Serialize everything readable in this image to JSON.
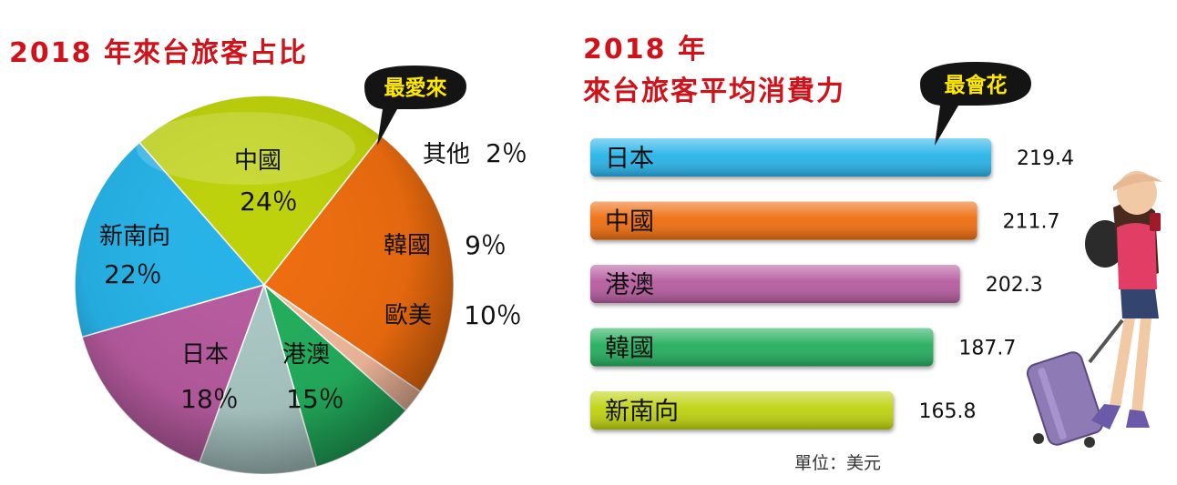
{
  "pie": {
    "title": "2018 年來台旅客占比",
    "callout": "最愛來",
    "colors": {
      "中國": "#ee6c0e",
      "其他": "#f2b99c",
      "韓國": "#22ad5c",
      "歐美": "#a9c7c4",
      "港澳": "#b65a9e",
      "日本": "#26b3e8",
      "新南向": "#bed20a"
    }
  },
  "bars": {
    "title_line1": "2018 年",
    "title_line2": "來台旅客平均消費力",
    "callout": "最會花",
    "unit_note": "單位：美元",
    "colors": {
      "日本": "#26b3e8",
      "中國": "#ee6c0e",
      "港澳": "#b65a9e",
      "韓國": "#22ad5c",
      "新南向": "#bed20a"
    }
  },
  "chart_data": [
    {
      "type": "pie",
      "title": "2018 年來台旅客占比",
      "slices": [
        {
          "label": "中國",
          "value": 24,
          "value_label": "24％"
        },
        {
          "label": "其他",
          "value": 2,
          "value_label": "2％"
        },
        {
          "label": "韓國",
          "value": 9,
          "value_label": "9％"
        },
        {
          "label": "歐美",
          "value": 10,
          "value_label": "10％"
        },
        {
          "label": "港澳",
          "value": 15,
          "value_label": "15％"
        },
        {
          "label": "日本",
          "value": 18,
          "value_label": "18％"
        },
        {
          "label": "新南向",
          "value": 22,
          "value_label": "22％"
        }
      ]
    },
    {
      "type": "bar",
      "title": "2018 年 來台旅客平均消費力",
      "categories": [
        "日本",
        "中國",
        "港澳",
        "韓國",
        "新南向"
      ],
      "values": [
        219.4,
        211.7,
        202.3,
        187.7,
        165.8
      ],
      "value_labels": [
        "219.4",
        "211.7",
        "202.3",
        "187.7",
        "165.8"
      ],
      "unit": "單位：美元"
    }
  ]
}
